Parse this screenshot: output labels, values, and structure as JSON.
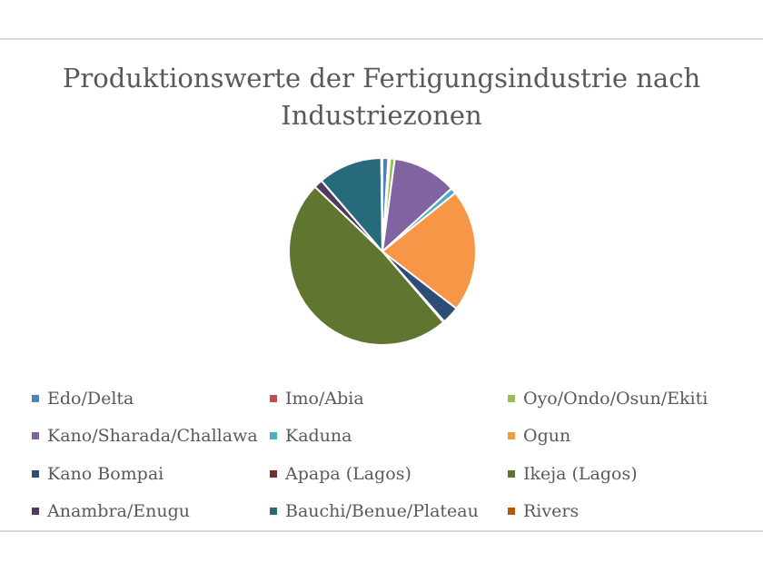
{
  "chart_data": {
    "type": "pie",
    "title": "Produktionswerte der Fertigungsindustrie nach Industriezonen",
    "title_lines": [
      "Produktionswerte der Fertigungsindustrie nach",
      "Industriezonen"
    ],
    "legend_position": "bottom",
    "slices": [
      {
        "label": "Edo/Delta",
        "value": 1.0,
        "color": "#4f81bd"
      },
      {
        "label": "Imo/Abia",
        "value": 0.3,
        "color": "#c0504d"
      },
      {
        "label": "Oyo/Ondo/Osun/Ekiti",
        "value": 0.8,
        "color": "#9bbb59"
      },
      {
        "label": "Kano/Sharada/Challawa",
        "value": 11.0,
        "color": "#8064a2"
      },
      {
        "label": "Kaduna",
        "value": 1.0,
        "color": "#4bacc6"
      },
      {
        "label": "Ogun",
        "value": 21.0,
        "color": "#f79646"
      },
      {
        "label": "Kano Bompai",
        "value": 3.0,
        "color": "#2c4d75"
      },
      {
        "label": "Apapa (Lagos)",
        "value": 0.2,
        "color": "#772c2a"
      },
      {
        "label": "Ikeja (Lagos)",
        "value": 48.0,
        "color": "#5f7530"
      },
      {
        "label": "Anambra/Enugu",
        "value": 1.5,
        "color": "#4d3b62"
      },
      {
        "label": "Bauchi/Benue/Plateau",
        "value": 11.0,
        "color": "#276a7c"
      },
      {
        "label": "Rivers",
        "value": 0.2,
        "color": "#b65708"
      }
    ]
  }
}
